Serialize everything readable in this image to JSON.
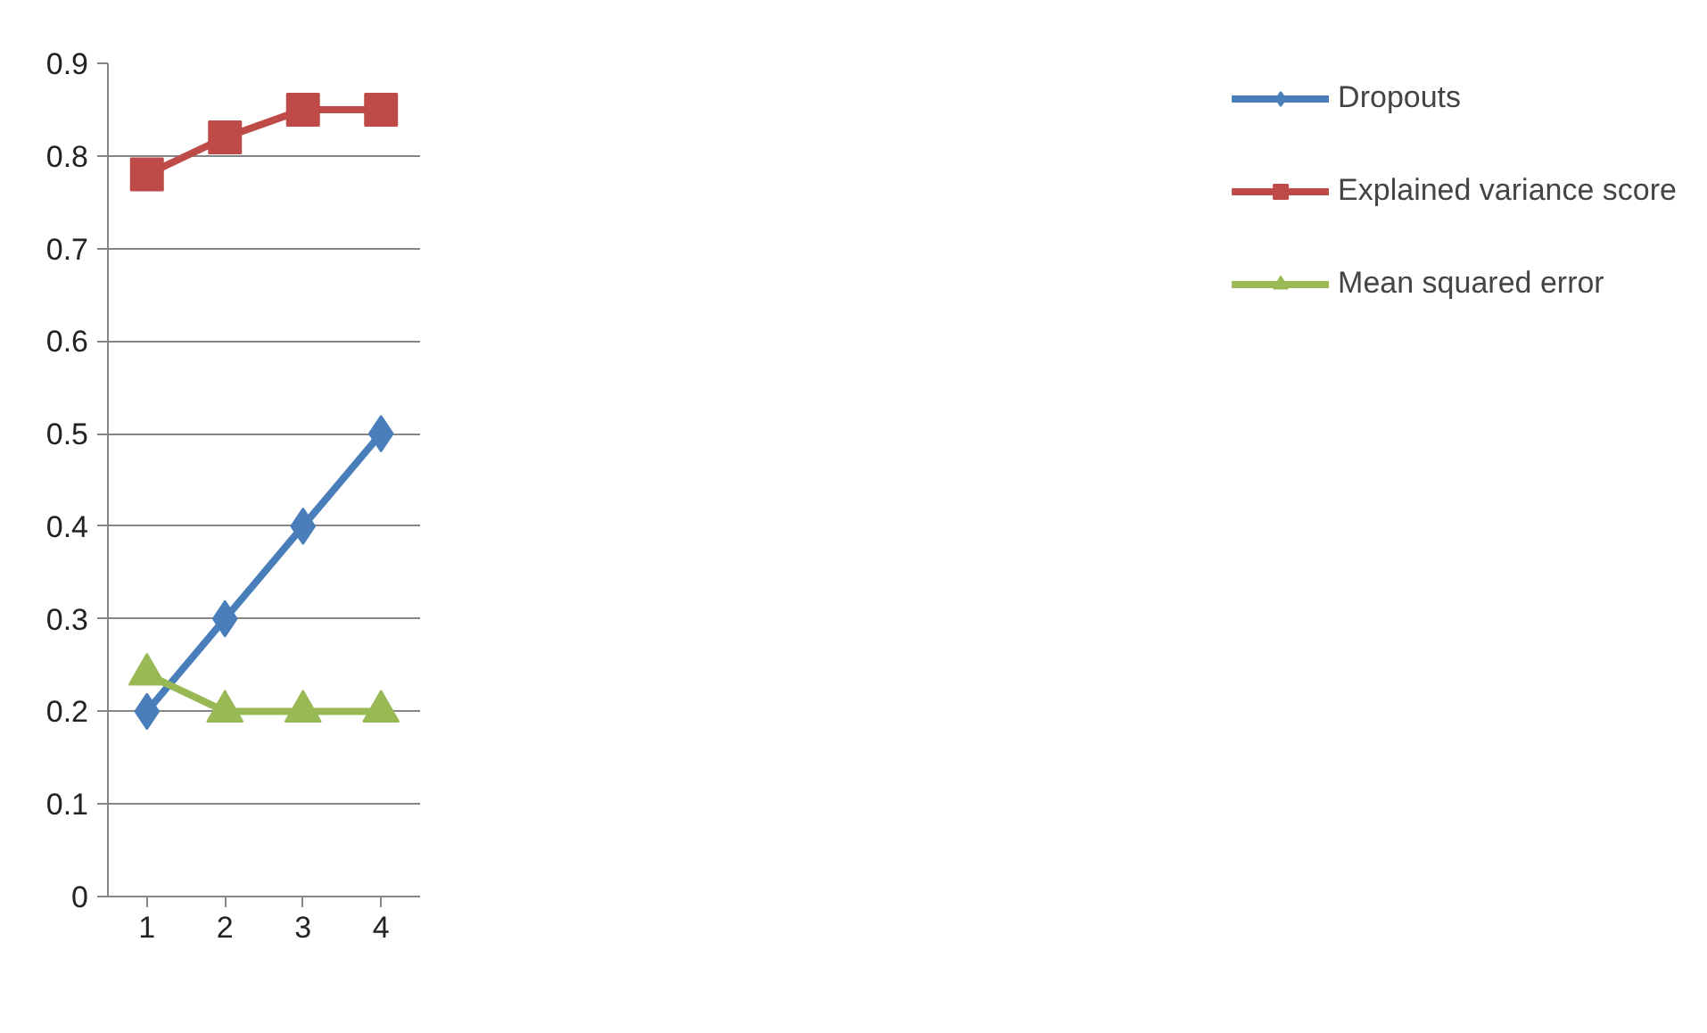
{
  "chart_data": {
    "type": "line",
    "categories": [
      "1",
      "2",
      "3",
      "4"
    ],
    "ylim": [
      0,
      0.9
    ],
    "yticks": [
      0,
      0.1,
      0.2,
      0.3,
      0.4,
      0.5,
      0.6,
      0.7,
      0.8,
      0.9
    ],
    "grid": "y",
    "legend": "right",
    "line_style": "solid",
    "series": [
      {
        "name": "Dropouts",
        "color": "#4a7ebb",
        "marker": "diamond",
        "values": [
          0.2,
          0.3,
          0.4,
          0.5
        ]
      },
      {
        "name": "Explained variance score",
        "color": "#be4b48",
        "marker": "square",
        "values": [
          0.78,
          0.82,
          0.85,
          0.85
        ]
      },
      {
        "name": "Mean squared error",
        "color": "#98b954",
        "marker": "triangle",
        "values": [
          0.24,
          0.2,
          0.2,
          0.2
        ]
      }
    ]
  }
}
